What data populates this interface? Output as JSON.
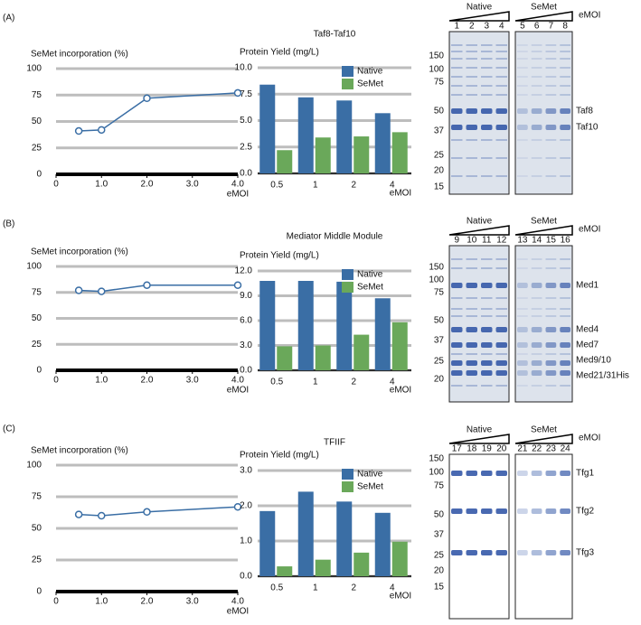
{
  "panel_labels": [
    "(A)",
    "(B)",
    "(C)"
  ],
  "chart_data": [
    {
      "type": "line",
      "ylabel": "SeMet incorporation (%)",
      "xlabel": "eMOI",
      "x": [
        0.5,
        1,
        2,
        4
      ],
      "values": [
        41,
        42,
        72,
        77
      ],
      "color": "#3a6ea5",
      "xlim": [
        0,
        4
      ],
      "ylim": [
        0,
        100
      ],
      "xticks": [
        0,
        {
          "value": 1,
          "label": "1.0"
        },
        {
          "value": 2,
          "label": "2.0"
        },
        {
          "value": 3,
          "label": "3.0"
        },
        {
          "value": 4,
          "label": "4.0"
        }
      ],
      "yticks": [
        0,
        25,
        50,
        75,
        100
      ],
      "grid": true
    },
    {
      "type": "bar",
      "title": "Taf8-Taf10",
      "ylabel": "Protein Yield (mg/L)",
      "xlabel": "eMOI",
      "categories": [
        "0.5",
        "1",
        "2",
        "4"
      ],
      "series": [
        {
          "name": "Native",
          "color": "#3a6ea5",
          "values": [
            8.4,
            7.2,
            6.9,
            5.7
          ]
        },
        {
          "name": "SeMet",
          "color": "#6aa85a",
          "values": [
            2.2,
            3.4,
            3.5,
            3.9
          ]
        }
      ],
      "ylim": [
        0,
        10
      ],
      "yticks": [
        {
          "value": 0,
          "label": "0.0"
        },
        {
          "value": 2.5,
          "label": "2.5"
        },
        {
          "value": 5,
          "label": "5.0"
        },
        {
          "value": 7.5,
          "label": "7.5"
        },
        {
          "value": 10,
          "label": "10.0"
        }
      ],
      "grid": true,
      "legend": "top-right"
    },
    {
      "type": "line",
      "ylabel": "SeMet incorporation (%)",
      "xlabel": "eMOI",
      "x": [
        0.5,
        1,
        2,
        4
      ],
      "values": [
        77,
        76,
        82,
        82
      ],
      "color": "#3a6ea5",
      "xlim": [
        0,
        4
      ],
      "ylim": [
        0,
        100
      ],
      "xticks": [
        0,
        {
          "value": 1,
          "label": "1.0"
        },
        {
          "value": 2,
          "label": "2.0"
        },
        {
          "value": 3,
          "label": "3.0"
        },
        {
          "value": 4,
          "label": "4.0"
        }
      ],
      "yticks": [
        0,
        25,
        50,
        75,
        100
      ],
      "grid": true
    },
    {
      "type": "bar",
      "title": "Mediator Middle Module",
      "ylabel": "Protein Yield (mg/L)",
      "xlabel": "eMOI",
      "categories": [
        "0.5",
        "1",
        "2",
        "4"
      ],
      "series": [
        {
          "name": "Native",
          "color": "#3a6ea5",
          "values": [
            10.8,
            10.8,
            10.7,
            8.7
          ]
        },
        {
          "name": "SeMet",
          "color": "#6aa85a",
          "values": [
            2.9,
            3.0,
            4.3,
            5.8
          ]
        }
      ],
      "ylim": [
        0,
        12
      ],
      "yticks": [
        {
          "value": 0,
          "label": "0.0"
        },
        {
          "value": 3,
          "label": "3.0"
        },
        {
          "value": 6,
          "label": "6.0"
        },
        {
          "value": 9,
          "label": "9.0"
        },
        {
          "value": 12,
          "label": "12.0"
        }
      ],
      "grid": true,
      "legend": "top-right"
    },
    {
      "type": "line",
      "ylabel": "SeMet incorporation (%)",
      "xlabel": "eMOI",
      "x": [
        0.5,
        1,
        2,
        4
      ],
      "values": [
        61,
        60,
        63,
        67
      ],
      "color": "#3a6ea5",
      "xlim": [
        0,
        4
      ],
      "ylim": [
        0,
        100
      ],
      "xticks": [
        0,
        {
          "value": 1,
          "label": "1.0"
        },
        {
          "value": 2,
          "label": "2.0"
        },
        {
          "value": 3,
          "label": "3.0"
        },
        {
          "value": 4,
          "label": "4.0"
        }
      ],
      "yticks": [
        0,
        25,
        50,
        75,
        100
      ],
      "grid": true
    },
    {
      "type": "bar",
      "title": "TFIIF",
      "ylabel": "Protein Yield (mg/L)",
      "xlabel": "eMOI",
      "categories": [
        "0.5",
        "1",
        "2",
        "4"
      ],
      "series": [
        {
          "name": "Native",
          "color": "#3a6ea5",
          "values": [
            1.85,
            2.4,
            2.12,
            1.8
          ]
        },
        {
          "name": "SeMet",
          "color": "#6aa85a",
          "values": [
            0.28,
            0.47,
            0.67,
            0.98
          ]
        }
      ],
      "ylim": [
        0,
        3
      ],
      "yticks": [
        {
          "value": 0,
          "label": "0.0"
        },
        {
          "value": 1,
          "label": "1.0"
        },
        {
          "value": 2,
          "label": "2.0"
        },
        {
          "value": 3,
          "label": "3.0"
        }
      ],
      "grid": true,
      "legend": "top-right"
    }
  ],
  "gels": [
    {
      "groups": [
        "Native",
        "SeMet"
      ],
      "label": "eMOI",
      "lanes": [
        1,
        2,
        3,
        4,
        5,
        6,
        7,
        8
      ],
      "markers": [
        150,
        100,
        75,
        50,
        37,
        25,
        20,
        15
      ],
      "bands": [
        "Taf8",
        "Taf10"
      ]
    },
    {
      "groups": [
        "Native",
        "SeMet"
      ],
      "label": "eMOI",
      "lanes": [
        9,
        10,
        11,
        12,
        13,
        14,
        15,
        16
      ],
      "markers": [
        150,
        100,
        75,
        50,
        37,
        25,
        20
      ],
      "bands": [
        "Med1",
        "Med4",
        "Med7",
        "Med9/10",
        "Med21/31His"
      ]
    },
    {
      "groups": [
        "Native",
        "SeMet"
      ],
      "label": "eMOI",
      "lanes": [
        17,
        18,
        19,
        20,
        21,
        22,
        23,
        24
      ],
      "markers": [
        150,
        100,
        75,
        50,
        37,
        25,
        20,
        15
      ],
      "bands": [
        "Tfg1",
        "Tfg2",
        "Tfg3"
      ]
    }
  ]
}
